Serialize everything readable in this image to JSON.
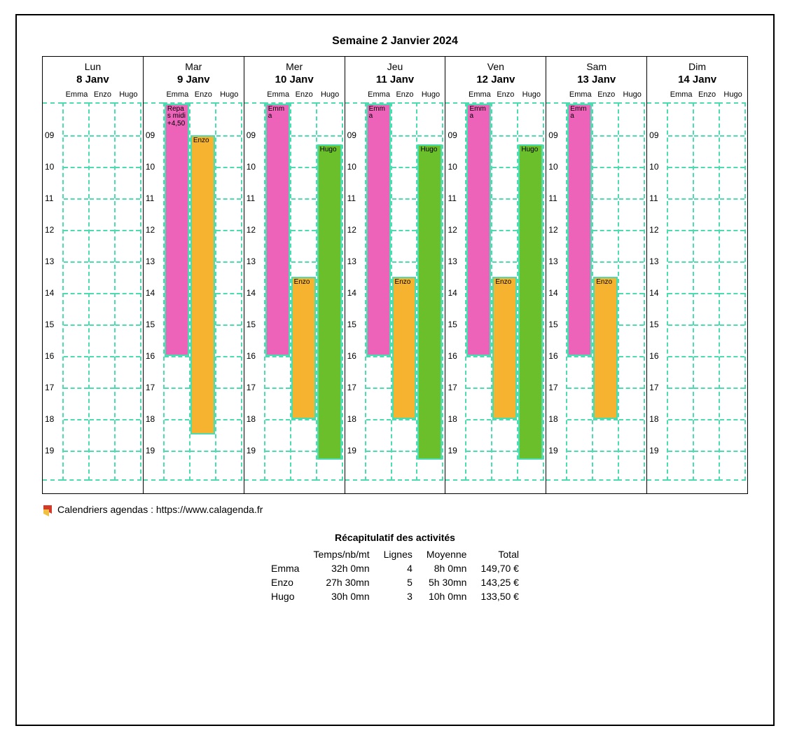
{
  "title": "Semaine 2  Janvier 2024",
  "gridColor": "#4ddbb0",
  "people": [
    "Emma",
    "Enzo",
    "Hugo"
  ],
  "startHour": 8,
  "endHour": 20,
  "labeledHours": [
    "09",
    "10",
    "11",
    "12",
    "13",
    "14",
    "15",
    "16",
    "17",
    "18",
    "19"
  ],
  "days": [
    {
      "name": "Lun",
      "date": "8 Janv",
      "events": []
    },
    {
      "name": "Mar",
      "date": "9 Janv",
      "events": [
        {
          "col": 0,
          "label": "Repas midi +4,50",
          "start": 8.0,
          "end": 16.0,
          "color": "#ec63b9"
        },
        {
          "col": 1,
          "label": "Enzo",
          "start": 9.0,
          "end": 18.5,
          "color": "#f5b32f"
        }
      ]
    },
    {
      "name": "Mer",
      "date": "10 Janv",
      "events": [
        {
          "col": 0,
          "label": "Emma",
          "start": 8.0,
          "end": 16.0,
          "color": "#ec63b9"
        },
        {
          "col": 1,
          "label": "Enzo",
          "start": 13.5,
          "end": 18.0,
          "color": "#f5b32f"
        },
        {
          "col": 2,
          "label": "Hugo",
          "start": 9.3,
          "end": 19.3,
          "color": "#6bbf2a"
        }
      ]
    },
    {
      "name": "Jeu",
      "date": "11 Janv",
      "events": [
        {
          "col": 0,
          "label": "Emma",
          "start": 8.0,
          "end": 16.0,
          "color": "#ec63b9"
        },
        {
          "col": 1,
          "label": "Enzo",
          "start": 13.5,
          "end": 18.0,
          "color": "#f5b32f"
        },
        {
          "col": 2,
          "label": "Hugo",
          "start": 9.3,
          "end": 19.3,
          "color": "#6bbf2a"
        }
      ]
    },
    {
      "name": "Ven",
      "date": "12 Janv",
      "events": [
        {
          "col": 0,
          "label": "Emma",
          "start": 8.0,
          "end": 16.0,
          "color": "#ec63b9"
        },
        {
          "col": 1,
          "label": "Enzo",
          "start": 13.5,
          "end": 18.0,
          "color": "#f5b32f"
        },
        {
          "col": 2,
          "label": "Hugo",
          "start": 9.3,
          "end": 19.3,
          "color": "#6bbf2a"
        }
      ]
    },
    {
      "name": "Sam",
      "date": "13 Janv",
      "events": [
        {
          "col": 0,
          "label": "Emma",
          "start": 8.0,
          "end": 16.0,
          "color": "#ec63b9"
        },
        {
          "col": 1,
          "label": "Enzo",
          "start": 13.5,
          "end": 18.0,
          "color": "#f5b32f"
        }
      ]
    },
    {
      "name": "Dim",
      "date": "14 Janv",
      "events": []
    }
  ],
  "footerText": "Calendriers agendas : https://www.calagenda.fr",
  "recap": {
    "title": "Récapitulatif des activités",
    "columns": [
      "",
      "Temps/nb/mt",
      "Lignes",
      "Moyenne",
      "Total"
    ],
    "rows": [
      [
        "Emma",
        "32h 0mn",
        "4",
        "8h 0mn",
        "149,70  €"
      ],
      [
        "Enzo",
        "27h 30mn",
        "5",
        "5h 30mn",
        "143,25  €"
      ],
      [
        "Hugo",
        "30h 0mn",
        "3",
        "10h 0mn",
        "133,50  €"
      ]
    ]
  }
}
